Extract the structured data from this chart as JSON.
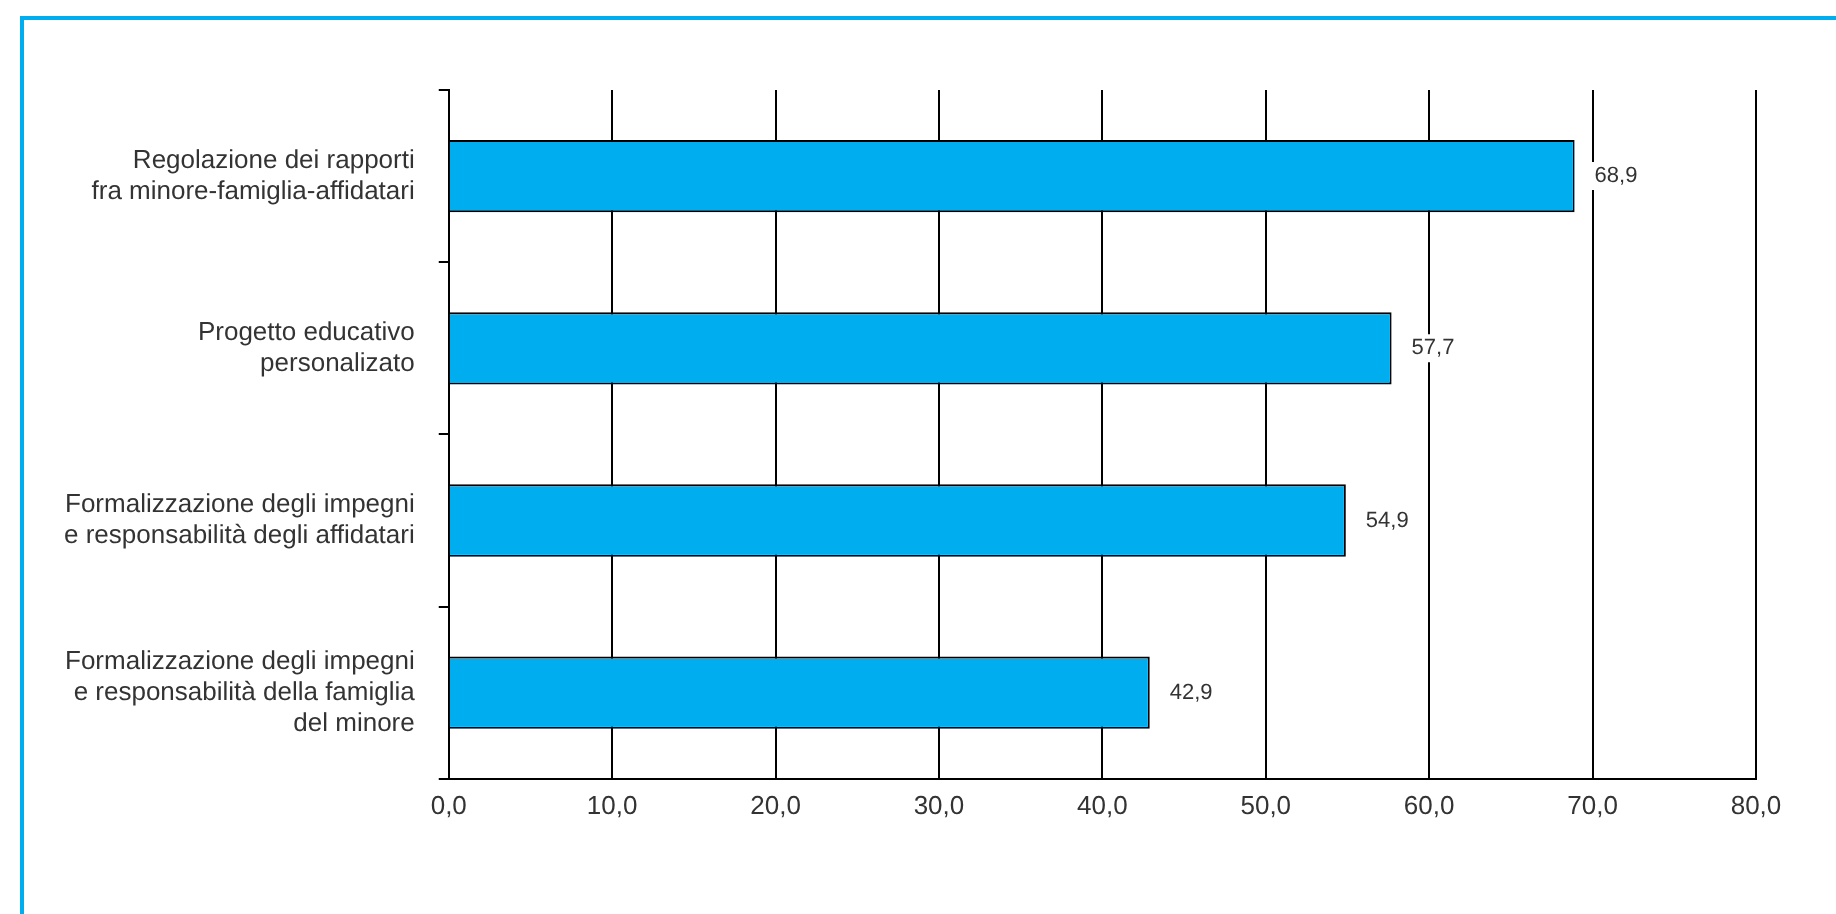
{
  "chart_data": {
    "type": "bar",
    "orientation": "horizontal",
    "categories": [
      "Regolazione dei rapporti\nfra minore-famiglia-affidatari",
      "Progetto educativo\npersonalizato",
      "Formalizzazione degli impegni\ne responsabilità degli affidatari",
      "Formalizzazione degli impegni\ne responsabilità della famiglia\ndel minore"
    ],
    "values": [
      68.9,
      57.7,
      54.9,
      42.9
    ],
    "value_labels": [
      "68,9",
      "57,7",
      "54,9",
      "42,9"
    ],
    "color": "#00aeef",
    "xlim": [
      0,
      80
    ],
    "xticks": [
      {
        "value": 0,
        "label": "0,0"
      },
      {
        "value": 10,
        "label": "10,0"
      },
      {
        "value": 20,
        "label": "20,0"
      },
      {
        "value": 30,
        "label": "30,0"
      },
      {
        "value": 40,
        "label": "40,0"
      },
      {
        "value": 50,
        "label": "50,0"
      },
      {
        "value": 60,
        "label": "60,0"
      },
      {
        "value": 70,
        "label": "70,0"
      },
      {
        "value": 80,
        "label": "80,0"
      }
    ],
    "grid": "x",
    "legend": false
  }
}
